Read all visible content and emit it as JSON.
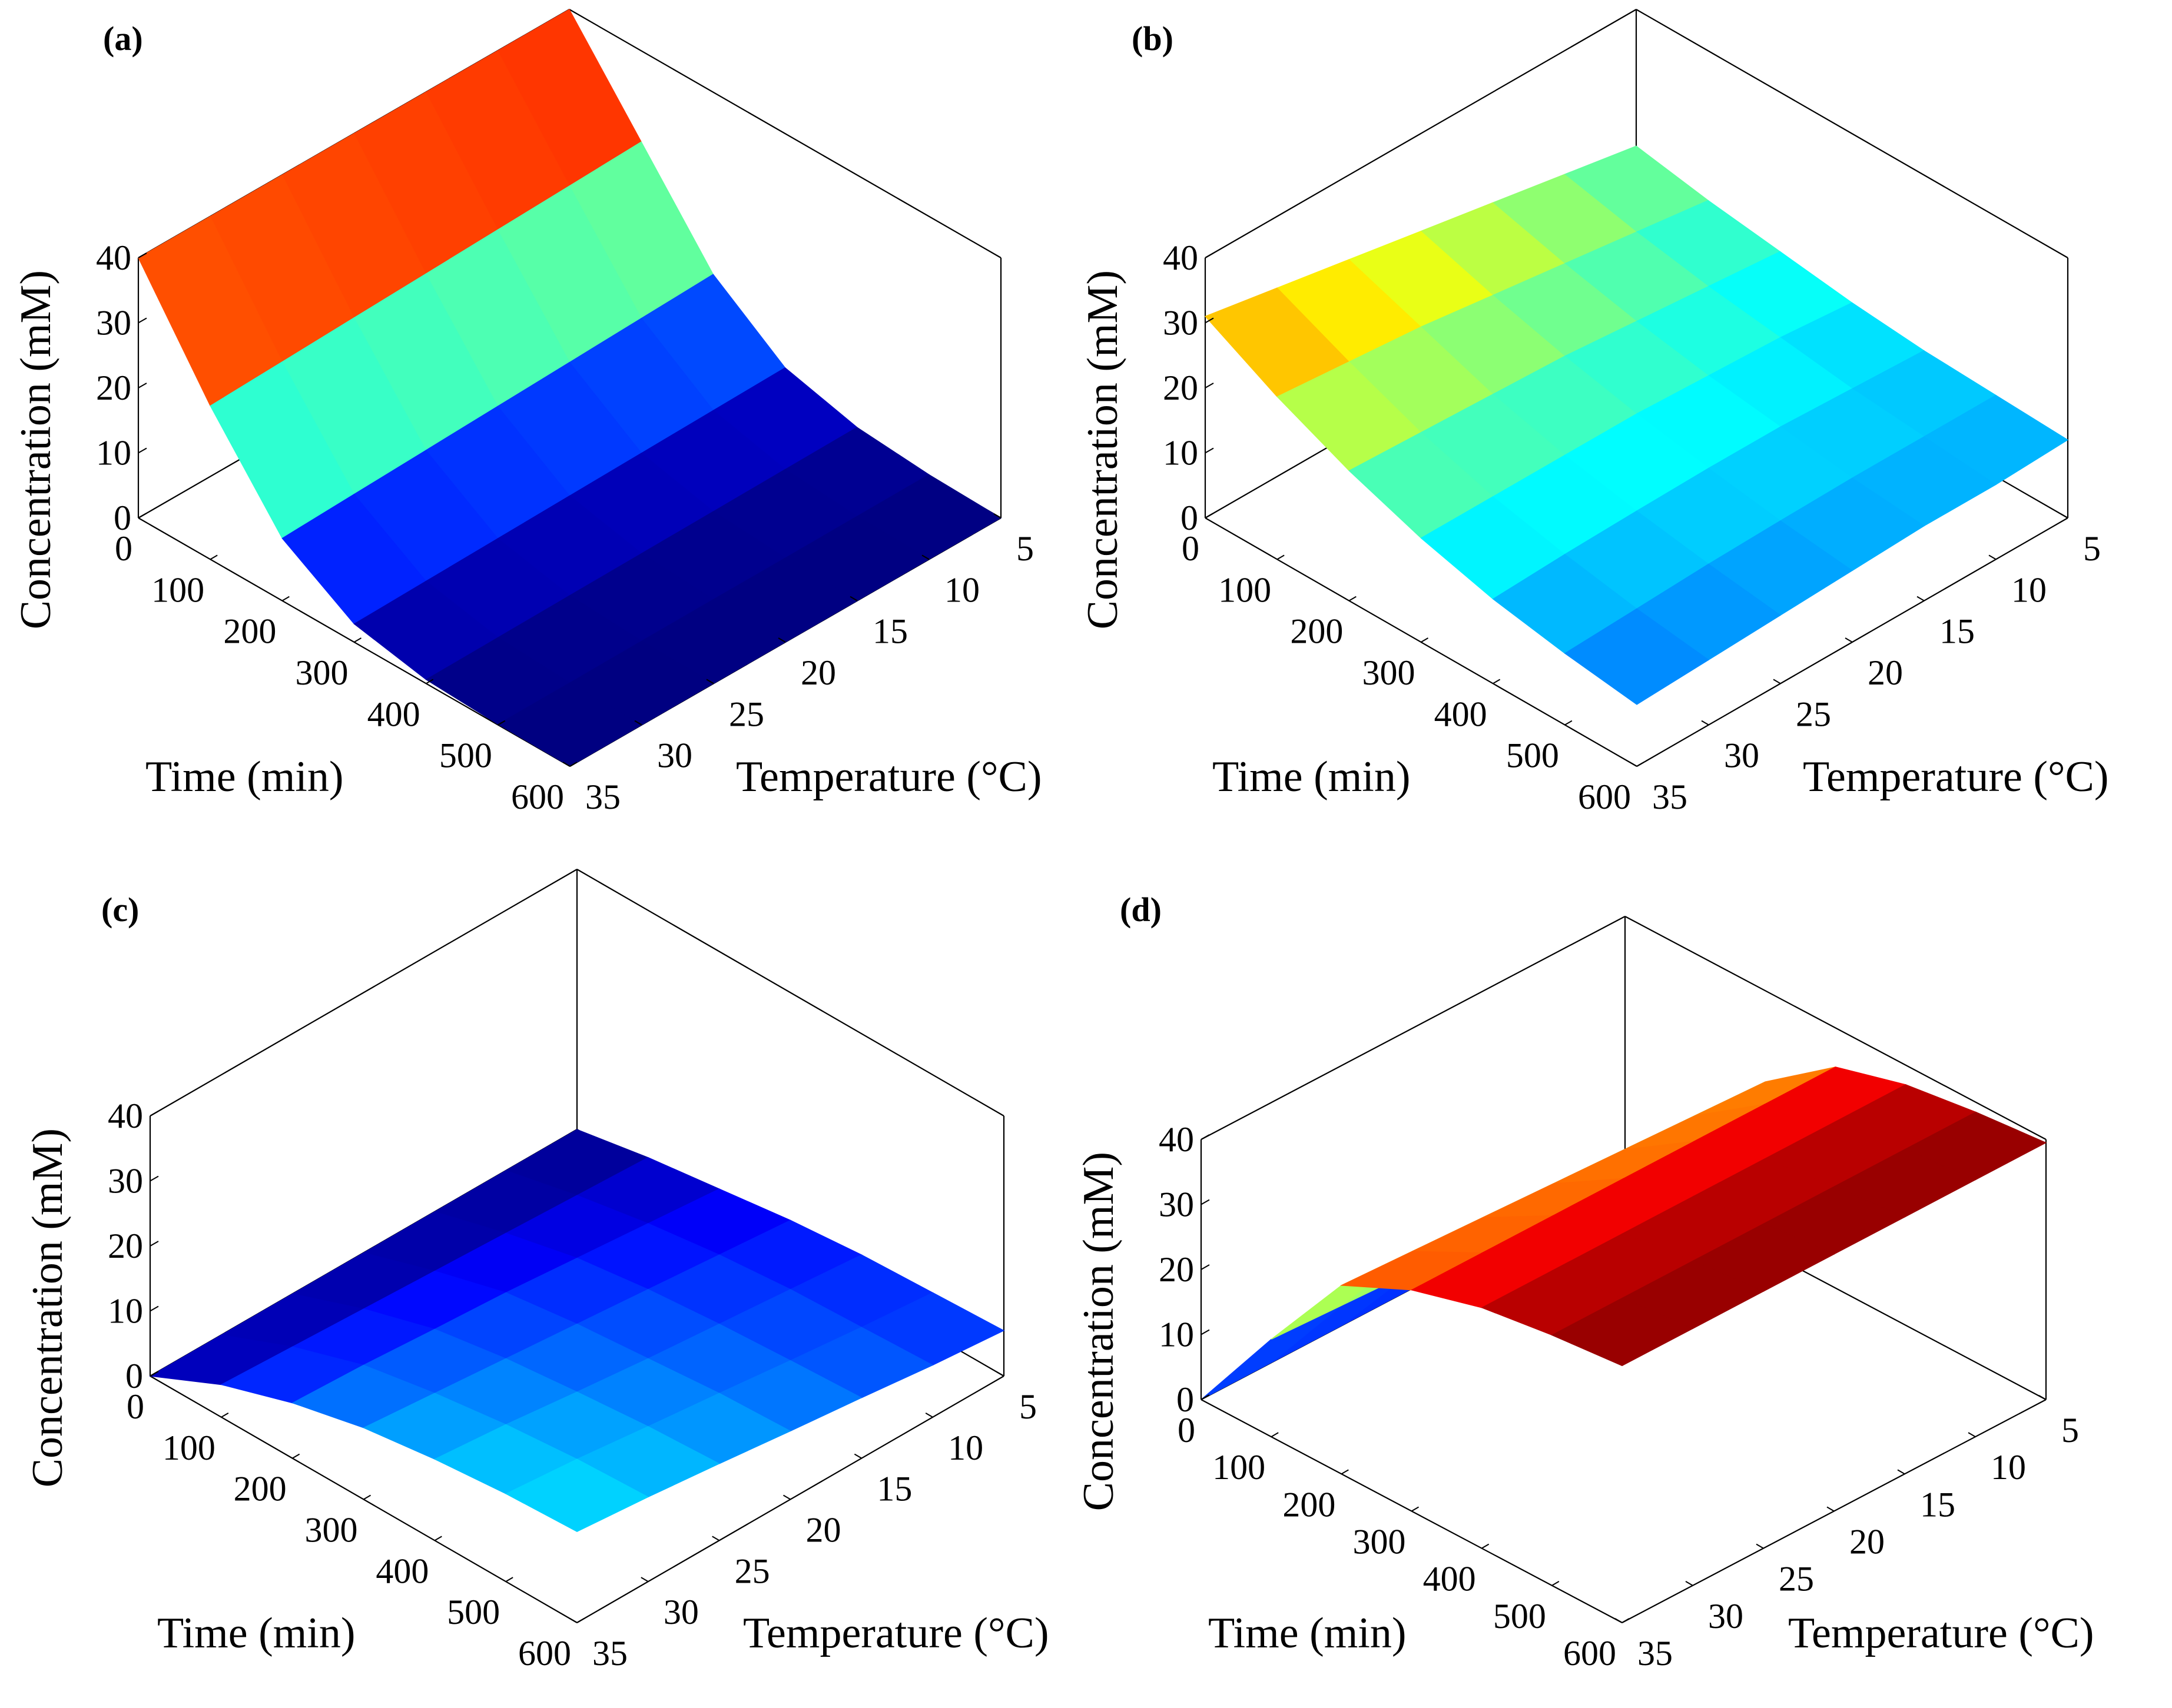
{
  "colors": {
    "background": "#ffffff",
    "axis": "#000000",
    "colormap": "jet"
  },
  "chart_data": [
    {
      "type": "surface3d",
      "panel_label": "(a)",
      "xlabel": "Time (min)",
      "ylabel": "Temperature (°C)",
      "zlabel": "Concentration (mM)",
      "x_ticks": [
        "0",
        "100",
        "200",
        "300",
        "400",
        "500",
        "600"
      ],
      "y_ticks": [
        "5",
        "10",
        "15",
        "20",
        "25",
        "30",
        "35"
      ],
      "z_ticks": [
        "0",
        "10",
        "20",
        "30",
        "40"
      ],
      "xlim": [
        0,
        600
      ],
      "ylim": [
        5,
        35
      ],
      "zlim": [
        0,
        40
      ],
      "clim": [
        0,
        40
      ],
      "x": [
        0,
        100,
        200,
        300,
        400,
        500,
        600
      ],
      "y": [
        5,
        10,
        15,
        20,
        25,
        30,
        35
      ],
      "z": [
        [
          40,
          40,
          40,
          40,
          40,
          40,
          40
        ],
        [
          26,
          25.6,
          25.2,
          24.8,
          24.4,
          24,
          23.6
        ],
        [
          12,
          11.6,
          11.2,
          10.8,
          10.4,
          10,
          9.6
        ],
        [
          4,
          3.8,
          3.6,
          3.4,
          3.2,
          3,
          2.8
        ],
        [
          1.2,
          1.1,
          1,
          0.9,
          0.8,
          0.7,
          0.6
        ],
        [
          0.3,
          0.25,
          0.2,
          0.2,
          0.15,
          0.1,
          0.1
        ],
        [
          0,
          0,
          0,
          0,
          0,
          0,
          0
        ]
      ]
    },
    {
      "type": "surface3d",
      "panel_label": "(b)",
      "xlabel": "Time (min)",
      "ylabel": "Temperature (°C)",
      "zlabel": "Concentration (mM)",
      "x_ticks": [
        "0",
        "100",
        "200",
        "300",
        "400",
        "500",
        "600"
      ],
      "y_ticks": [
        "5",
        "10",
        "15",
        "20",
        "25",
        "30",
        "35"
      ],
      "z_ticks": [
        "0",
        "10",
        "20",
        "30",
        "40"
      ],
      "xlim": [
        0,
        600
      ],
      "ylim": [
        5,
        35
      ],
      "zlim": [
        0,
        40
      ],
      "clim": [
        0,
        40
      ],
      "x": [
        0,
        100,
        200,
        300,
        400,
        500,
        600
      ],
      "y": [
        5,
        10,
        15,
        20,
        25,
        30,
        35
      ],
      "z": [
        [
          19,
          21,
          23,
          25,
          27,
          29,
          31
        ],
        [
          17,
          18.5,
          20,
          21.5,
          23,
          24,
          25
        ],
        [
          15.5,
          16.5,
          17.5,
          18.5,
          19,
          19.5,
          20
        ],
        [
          14,
          15,
          15.5,
          16,
          16,
          16,
          16
        ],
        [
          13,
          13.5,
          14,
          14,
          13.8,
          13.5,
          13
        ],
        [
          12.5,
          12.5,
          12.5,
          12.3,
          12,
          11.5,
          11
        ],
        [
          12,
          11.5,
          11.5,
          11,
          10.5,
          10,
          9.5
        ]
      ]
    },
    {
      "type": "surface3d",
      "panel_label": "(c)",
      "xlabel": "Time (min)",
      "ylabel": "Temperature (°C)",
      "zlabel": "Concentration (mM)",
      "x_ticks": [
        "0",
        "100",
        "200",
        "300",
        "400",
        "500",
        "600"
      ],
      "y_ticks": [
        "5",
        "10",
        "15",
        "20",
        "25",
        "30",
        "35"
      ],
      "z_ticks": [
        "0",
        "10",
        "20",
        "30",
        "40"
      ],
      "xlim": [
        0,
        600
      ],
      "ylim": [
        5,
        35
      ],
      "zlim": [
        0,
        40
      ],
      "clim": [
        0,
        40
      ],
      "x": [
        0,
        100,
        200,
        300,
        400,
        500,
        600
      ],
      "y": [
        5,
        10,
        15,
        20,
        25,
        30,
        35
      ],
      "z": [
        [
          0,
          0,
          0,
          0,
          0,
          0,
          0
        ],
        [
          2,
          2.5,
          3,
          3.5,
          4,
          4.5,
          5
        ],
        [
          3.5,
          4.5,
          5.5,
          6.5,
          7.2,
          8,
          8.5
        ],
        [
          5,
          6,
          7,
          8,
          9,
          10,
          11
        ],
        [
          6,
          7,
          8,
          9,
          10.2,
          11.5,
          12.5
        ],
        [
          6.5,
          7.5,
          8.7,
          10,
          11.2,
          12.5,
          13.5
        ],
        [
          7,
          8,
          9.3,
          10.5,
          11.8,
          13,
          14
        ]
      ]
    },
    {
      "type": "surface3d",
      "panel_label": "(d)",
      "xlabel": "Time (min)",
      "ylabel": "Temperature (°C)",
      "zlabel": "Concentration (mM)",
      "x_ticks": [
        "0",
        "100",
        "200",
        "300",
        "400",
        "500",
        "600"
      ],
      "y_ticks": [
        "5",
        "10",
        "15",
        "20",
        "25",
        "30",
        "35"
      ],
      "z_ticks": [
        "0",
        "10",
        "20",
        "30",
        "40"
      ],
      "xlim": [
        0,
        600
      ],
      "ylim": [
        5,
        35
      ],
      "zlim": [
        0,
        40
      ],
      "clim": [
        0,
        40
      ],
      "x": [
        0,
        100,
        200,
        300,
        400,
        500,
        600
      ],
      "y": [
        5,
        10,
        15,
        20,
        25,
        30,
        35
      ],
      "z": [
        [
          0,
          0,
          0,
          0,
          0,
          0,
          0
        ],
        [
          12,
          12.5,
          13,
          13.5,
          14,
          14.5,
          15
        ],
        [
          26,
          26.5,
          27,
          27.5,
          28,
          28.5,
          29
        ],
        [
          34,
          34,
          34,
          34,
          34,
          34,
          34
        ],
        [
          37,
          37,
          37,
          37,
          37,
          37,
          37
        ],
        [
          38.5,
          38.5,
          38.5,
          38.5,
          38.5,
          38.5,
          38.5
        ],
        [
          39.5,
          39.5,
          39.5,
          39.5,
          39.5,
          39.5,
          39.5
        ]
      ]
    }
  ]
}
